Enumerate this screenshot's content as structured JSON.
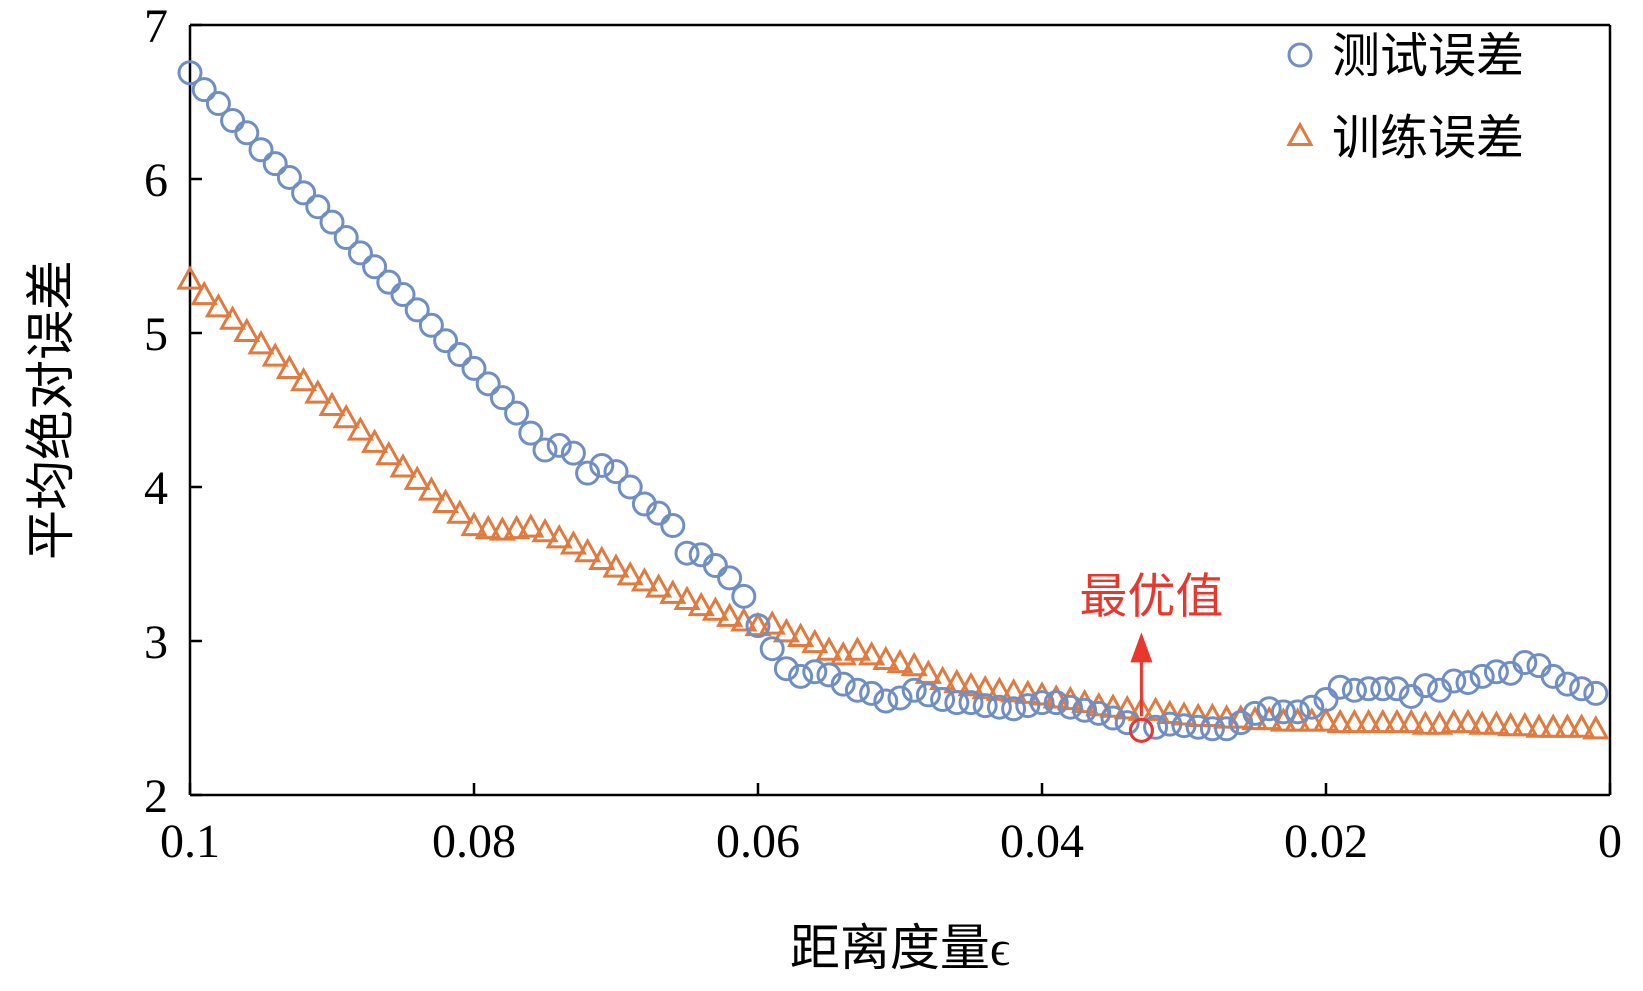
{
  "chart_data": {
    "type": "scatter",
    "title": "",
    "xlabel": "距离度量ϵ",
    "ylabel": "平均绝对误差",
    "xlim": [
      0.1,
      0
    ],
    "ylim": [
      2,
      7
    ],
    "x_reversed": true,
    "grid": false,
    "legend_position": "top-right",
    "xticks": [
      0.1,
      0.08,
      0.06,
      0.04,
      0.02,
      0
    ],
    "xtick_labels": [
      "0.1",
      "0.08",
      "0.06",
      "0.04",
      "0.02",
      "0"
    ],
    "yticks": [
      2,
      3,
      4,
      5,
      6,
      7
    ],
    "ytick_labels": [
      "2",
      "3",
      "4",
      "5",
      "6",
      "7"
    ],
    "series": [
      {
        "name": "测试误差",
        "marker": "circle",
        "color": "#6f8fc4",
        "x": [
          0.1,
          0.099,
          0.098,
          0.097,
          0.096,
          0.095,
          0.094,
          0.093,
          0.092,
          0.091,
          0.09,
          0.089,
          0.088,
          0.087,
          0.086,
          0.085,
          0.084,
          0.083,
          0.082,
          0.081,
          0.08,
          0.079,
          0.078,
          0.077,
          0.076,
          0.075,
          0.074,
          0.073,
          0.072,
          0.071,
          0.07,
          0.069,
          0.068,
          0.067,
          0.066,
          0.065,
          0.064,
          0.063,
          0.062,
          0.061,
          0.06,
          0.059,
          0.058,
          0.057,
          0.056,
          0.055,
          0.054,
          0.053,
          0.052,
          0.051,
          0.05,
          0.049,
          0.048,
          0.047,
          0.046,
          0.045,
          0.044,
          0.043,
          0.042,
          0.041,
          0.04,
          0.039,
          0.038,
          0.037,
          0.036,
          0.035,
          0.034,
          0.033,
          0.032,
          0.031,
          0.03,
          0.029,
          0.028,
          0.027,
          0.026,
          0.025,
          0.024,
          0.023,
          0.022,
          0.021,
          0.02,
          0.019,
          0.018,
          0.017,
          0.016,
          0.015,
          0.014,
          0.013,
          0.012,
          0.011,
          0.01,
          0.009,
          0.008,
          0.007,
          0.006,
          0.005,
          0.004,
          0.003,
          0.002,
          0.001
        ],
        "y": [
          6.69,
          6.58,
          6.49,
          6.38,
          6.3,
          6.19,
          6.1,
          6.01,
          5.91,
          5.82,
          5.72,
          5.62,
          5.52,
          5.43,
          5.33,
          5.25,
          5.15,
          5.05,
          4.95,
          4.86,
          4.77,
          4.67,
          4.58,
          4.48,
          4.35,
          4.24,
          4.27,
          4.22,
          4.09,
          4.14,
          4.1,
          4.0,
          3.89,
          3.83,
          3.75,
          3.57,
          3.56,
          3.49,
          3.41,
          3.29,
          3.1,
          2.95,
          2.82,
          2.77,
          2.8,
          2.78,
          2.72,
          2.68,
          2.66,
          2.61,
          2.63,
          2.68,
          2.65,
          2.62,
          2.6,
          2.6,
          2.58,
          2.57,
          2.56,
          2.58,
          2.6,
          2.6,
          2.57,
          2.55,
          2.53,
          2.5,
          2.47,
          2.42,
          2.44,
          2.46,
          2.45,
          2.44,
          2.43,
          2.43,
          2.47,
          2.53,
          2.56,
          2.54,
          2.54,
          2.57,
          2.62,
          2.7,
          2.68,
          2.69,
          2.69,
          2.69,
          2.64,
          2.71,
          2.68,
          2.74,
          2.73,
          2.77,
          2.8,
          2.79,
          2.86,
          2.84,
          2.77,
          2.72,
          2.69,
          2.66
        ]
      },
      {
        "name": "训练误差",
        "marker": "triangle",
        "color": "#e07a3e",
        "x": [
          0.1,
          0.099,
          0.098,
          0.097,
          0.096,
          0.095,
          0.094,
          0.093,
          0.092,
          0.091,
          0.09,
          0.089,
          0.088,
          0.087,
          0.086,
          0.085,
          0.084,
          0.083,
          0.082,
          0.081,
          0.08,
          0.079,
          0.078,
          0.077,
          0.076,
          0.075,
          0.074,
          0.073,
          0.072,
          0.071,
          0.07,
          0.069,
          0.068,
          0.067,
          0.066,
          0.065,
          0.064,
          0.063,
          0.062,
          0.061,
          0.06,
          0.059,
          0.058,
          0.057,
          0.056,
          0.055,
          0.054,
          0.053,
          0.052,
          0.051,
          0.05,
          0.049,
          0.048,
          0.047,
          0.046,
          0.045,
          0.044,
          0.043,
          0.042,
          0.041,
          0.04,
          0.039,
          0.038,
          0.037,
          0.036,
          0.035,
          0.034,
          0.033,
          0.032,
          0.031,
          0.03,
          0.029,
          0.028,
          0.027,
          0.026,
          0.025,
          0.024,
          0.023,
          0.022,
          0.021,
          0.02,
          0.019,
          0.018,
          0.017,
          0.016,
          0.015,
          0.014,
          0.013,
          0.012,
          0.011,
          0.01,
          0.009,
          0.008,
          0.007,
          0.006,
          0.005,
          0.004,
          0.003,
          0.002,
          0.001
        ],
        "y": [
          5.34,
          5.24,
          5.16,
          5.08,
          5.0,
          4.92,
          4.84,
          4.76,
          4.68,
          4.6,
          4.52,
          4.44,
          4.36,
          4.28,
          4.2,
          4.12,
          4.04,
          3.97,
          3.89,
          3.82,
          3.74,
          3.72,
          3.71,
          3.72,
          3.73,
          3.7,
          3.66,
          3.62,
          3.57,
          3.52,
          3.47,
          3.42,
          3.38,
          3.34,
          3.3,
          3.26,
          3.22,
          3.19,
          3.15,
          3.12,
          3.09,
          3.1,
          3.05,
          3.02,
          2.98,
          2.93,
          2.9,
          2.93,
          2.9,
          2.87,
          2.85,
          2.83,
          2.78,
          2.74,
          2.72,
          2.7,
          2.68,
          2.67,
          2.66,
          2.65,
          2.64,
          2.62,
          2.61,
          2.59,
          2.57,
          2.56,
          2.55,
          2.54,
          2.54,
          2.52,
          2.51,
          2.5,
          2.5,
          2.49,
          2.49,
          2.48,
          2.48,
          2.47,
          2.47,
          2.47,
          2.47,
          2.46,
          2.46,
          2.46,
          2.46,
          2.46,
          2.46,
          2.45,
          2.45,
          2.46,
          2.46,
          2.45,
          2.45,
          2.44,
          2.44,
          2.43,
          2.43,
          2.43,
          2.43,
          2.42
        ]
      }
    ],
    "annotations": [
      {
        "text": "最优值",
        "x": 0.033,
        "y": 2.42,
        "color": "#e8382e"
      }
    ]
  }
}
